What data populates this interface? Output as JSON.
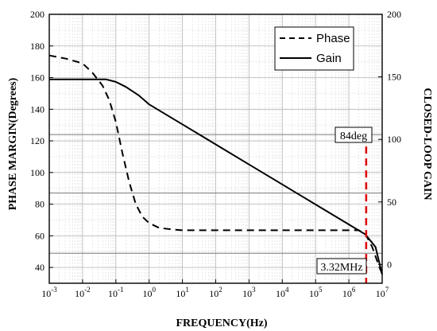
{
  "chart_data": {
    "type": "line",
    "xlabel": "FREQUENCY(Hz)",
    "ylabel_left": "PHASE MARGIN(Degrees)",
    "ylabel_right": "CLOSED-LOOP GAIN",
    "x_scale": "log",
    "x_range_log10": [
      -3,
      7
    ],
    "x_ticks": [
      {
        "base": "10",
        "exp": "-3",
        "value": -3
      },
      {
        "base": "10",
        "exp": "-2",
        "value": -2
      },
      {
        "base": "10",
        "exp": "-1",
        "value": -1
      },
      {
        "base": "10",
        "exp": "0",
        "value": 0
      },
      {
        "base": "10",
        "exp": "1",
        "value": 1
      },
      {
        "base": "10",
        "exp": "2",
        "value": 2
      },
      {
        "base": "10",
        "exp": "3",
        "value": 3
      },
      {
        "base": "10",
        "exp": "4",
        "value": 4
      },
      {
        "base": "10",
        "exp": "5",
        "value": 5
      },
      {
        "base": "10",
        "exp": "6",
        "value": 6
      },
      {
        "base": "10",
        "exp": "7",
        "value": 7
      }
    ],
    "y_left_range": [
      30,
      200
    ],
    "y_left_ticks": [
      "40",
      "60",
      "80",
      "100",
      "120",
      "140",
      "160",
      "180",
      "200"
    ],
    "y_right_range": [
      -15,
      200
    ],
    "y_right_ticks": [
      "0",
      "50",
      "100",
      "150",
      "200"
    ],
    "grid": true,
    "legend_position": "top-right",
    "legend": [
      {
        "label": "Phase",
        "style": "dashed"
      },
      {
        "label": "Gain",
        "style": "solid"
      }
    ],
    "series": [
      {
        "name": "Phase",
        "axis": "left",
        "style": "dashed",
        "x_log10": [
          -3,
          -2.5,
          -2,
          -1.7,
          -1.4,
          -1.2,
          -1.0,
          -0.8,
          -0.6,
          -0.4,
          -0.2,
          0,
          0.3,
          0.7,
          1,
          2,
          3,
          4,
          5,
          6,
          6.3,
          6.5,
          6.6,
          6.7,
          6.8,
          6.9,
          7.0
        ],
        "y": [
          174,
          172,
          169,
          163,
          155,
          146,
          132,
          112,
          94,
          80,
          72,
          68,
          65,
          64,
          63.5,
          63.5,
          63.5,
          63.5,
          63.5,
          63.5,
          63.5,
          61,
          57,
          53,
          47,
          41,
          36
        ]
      },
      {
        "name": "Gain",
        "axis": "right",
        "style": "solid",
        "x_log10": [
          -3,
          -2,
          -1.3,
          -1,
          -0.7,
          -0.3,
          0,
          1,
          2,
          3,
          4,
          5,
          6,
          6.5,
          6.8,
          7.0
        ],
        "y": [
          148,
          148,
          148,
          146,
          142,
          135,
          128,
          112,
          96,
          80,
          64,
          48,
          32,
          24,
          14,
          -8
        ]
      }
    ],
    "annotations": [
      {
        "text": "84deg",
        "x_log10": 6.52,
        "y_left": 124
      },
      {
        "text": "3.32MHz",
        "x_log10": 6.52,
        "y_left": 38
      }
    ],
    "marker_line": {
      "x_log10": 6.52,
      "y_left_from": 124,
      "y_left_to": 30,
      "color": "#e00000",
      "style": "dashed"
    },
    "reference_lines": [
      {
        "axis": "left",
        "y": 124
      },
      {
        "axis": "left",
        "y": 87
      },
      {
        "axis": "left",
        "y": 49
      }
    ]
  }
}
